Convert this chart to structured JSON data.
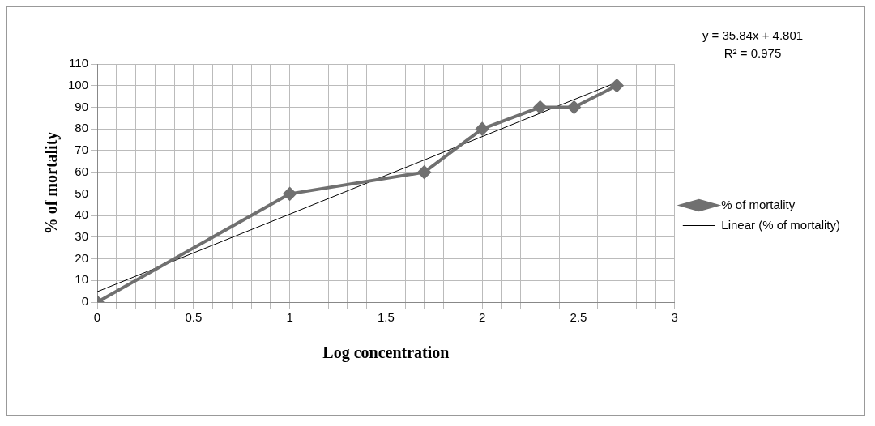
{
  "chart_data": {
    "type": "line",
    "xlabel": "Log concentration",
    "ylabel": "% of mortality",
    "annotations": [
      "y = 35.84x + 4.801",
      "R² = 0.975"
    ],
    "xlim": [
      0,
      3
    ],
    "xticks": [
      0,
      {
        "value": 0.1,
        "label": null
      },
      {
        "value": 0.2,
        "label": null
      },
      {
        "value": 0.3,
        "label": null
      },
      {
        "value": 0.4,
        "label": null
      },
      0.5,
      {
        "value": 0.6,
        "label": null
      },
      {
        "value": 0.7,
        "label": null
      },
      {
        "value": 0.8,
        "label": null
      },
      {
        "value": 0.9,
        "label": null
      },
      1,
      {
        "value": 1.1,
        "label": null
      },
      {
        "value": 1.2,
        "label": null
      },
      {
        "value": 1.3,
        "label": null
      },
      {
        "value": 1.4,
        "label": null
      },
      1.5,
      {
        "value": 1.6,
        "label": null
      },
      {
        "value": 1.7,
        "label": null
      },
      {
        "value": 1.8,
        "label": null
      },
      {
        "value": 1.9,
        "label": null
      },
      2,
      {
        "value": 2.1,
        "label": null
      },
      {
        "value": 2.2,
        "label": null
      },
      {
        "value": 2.3,
        "label": null
      },
      {
        "value": 2.4,
        "label": null
      },
      2.5,
      {
        "value": 2.6,
        "label": null
      },
      {
        "value": 2.7,
        "label": null
      },
      {
        "value": 2.8,
        "label": null
      },
      {
        "value": 2.9,
        "label": null
      },
      3
    ],
    "ylim": [
      0,
      110
    ],
    "yticks": [
      0,
      10,
      20,
      30,
      40,
      50,
      60,
      70,
      80,
      90,
      100,
      110
    ],
    "grid": true,
    "legend": "right",
    "series": [
      {
        "name": "% of mortality",
        "color": "#707070",
        "marker": "diamond",
        "x": [
          0,
          1,
          1.699,
          2,
          2.301,
          2.477,
          2.699
        ],
        "values": [
          0,
          50,
          60,
          80,
          90,
          90,
          100
        ]
      },
      {
        "name": "Linear (% of mortality)",
        "color": "#000000",
        "marker": "none",
        "x": [
          0,
          2.699
        ],
        "values": [
          4.8,
          101.5
        ]
      }
    ]
  }
}
